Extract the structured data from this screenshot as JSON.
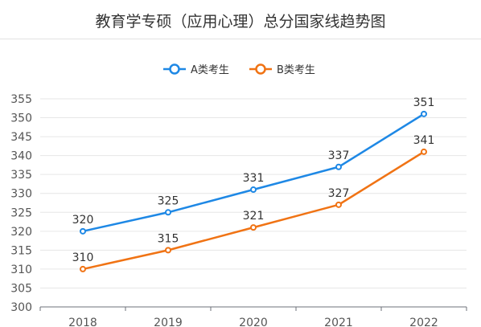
{
  "title": "教育学专硕（应用心理）总分国家线趋势图",
  "chart_data": {
    "type": "line",
    "categories": [
      "2018",
      "2019",
      "2020",
      "2021",
      "2022"
    ],
    "series": [
      {
        "name": "A类考生",
        "color": "#1e88e5",
        "values": [
          320,
          325,
          331,
          337,
          351
        ]
      },
      {
        "name": "B类考生",
        "color": "#f07314",
        "values": [
          310,
          315,
          321,
          327,
          341
        ]
      }
    ],
    "ylim": [
      300,
      355
    ],
    "yticks": [
      300,
      305,
      310,
      315,
      320,
      325,
      330,
      335,
      340,
      345,
      350,
      355
    ],
    "grid": true,
    "legend": "top-center",
    "data_labels": true
  }
}
